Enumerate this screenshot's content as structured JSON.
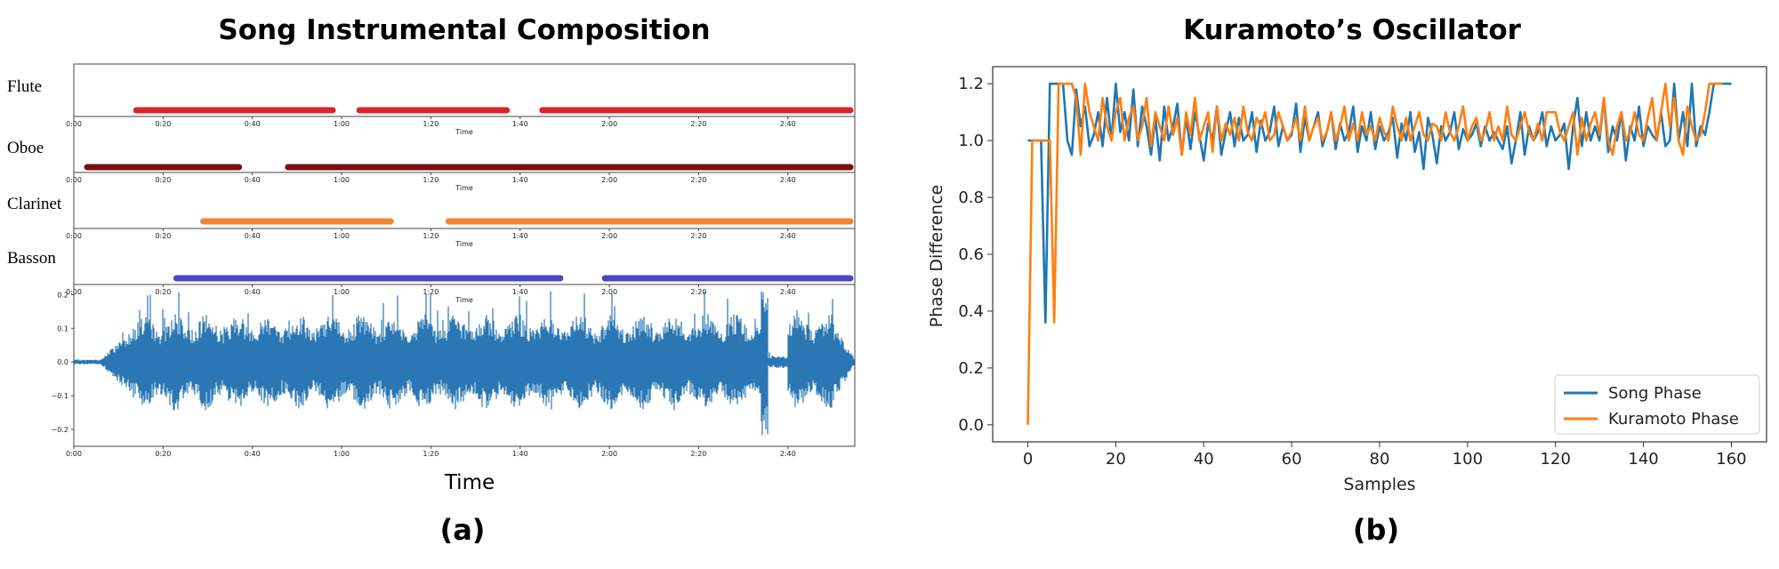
{
  "left_title": "Song Instrumental Composition",
  "right_title": "Kuramoto’s Oscillator",
  "label_a": "(a)",
  "label_b": "(b)",
  "chart_data": [
    {
      "type": "timeline",
      "title": "Song Instrumental Composition",
      "xlabel": "Time",
      "time_axis_label": "Time",
      "x_ticks": [
        "0:00",
        "0:20",
        "0:40",
        "1:00",
        "1:20",
        "1:40",
        "2:00",
        "2:20",
        "2:40"
      ],
      "tick_seconds": [
        0,
        20,
        40,
        60,
        80,
        100,
        120,
        140,
        160
      ],
      "xlim": [
        0,
        175
      ],
      "instruments": [
        {
          "name": "Flute",
          "color": "#d7262b",
          "segments": [
            [
              14,
              58
            ],
            [
              64,
              97
            ],
            [
              105,
              174
            ]
          ]
        },
        {
          "name": "Oboe",
          "color": "#7b0f12",
          "segments": [
            [
              3,
              37
            ],
            [
              48,
              174
            ]
          ]
        },
        {
          "name": "Clarinet",
          "color": "#f08535",
          "segments": [
            [
              29,
              71
            ],
            [
              84,
              174
            ]
          ]
        },
        {
          "name": "Basson",
          "color": "#4747bf",
          "segments": [
            [
              23,
              109
            ],
            [
              119,
              174
            ]
          ]
        }
      ],
      "waveform": {
        "color": "#2a77b3",
        "y_ticks": [
          "0.2",
          "0.1",
          "0.0",
          "−0.1",
          "−0.2"
        ],
        "y_values": [
          0.2,
          0.1,
          0.0,
          -0.1,
          -0.2
        ],
        "ylim": [
          -0.25,
          0.23
        ]
      }
    },
    {
      "type": "line",
      "title": "Kuramoto’s Oscillator",
      "xlabel": "Samples",
      "ylabel": "Phase Difference",
      "xlim": [
        -8,
        168
      ],
      "ylim": [
        -0.06,
        1.26
      ],
      "x_ticks": [
        0,
        20,
        40,
        60,
        80,
        100,
        120,
        140,
        160
      ],
      "y_ticks": [
        "0.0",
        "0.2",
        "0.4",
        "0.6",
        "0.8",
        "1.0",
        "1.2"
      ],
      "y_tick_values": [
        0.0,
        0.2,
        0.4,
        0.6,
        0.8,
        1.0,
        1.2
      ],
      "legend_position": "bottom-right",
      "series": [
        {
          "name": "Song Phase",
          "color": "#1f77b4",
          "values": [
            1.0,
            1.0,
            1.0,
            1.0,
            0.36,
            1.2,
            1.2,
            1.2,
            1.2,
            1.0,
            0.95,
            1.18,
            1.05,
            1.12,
            0.98,
            1.02,
            1.1,
            0.98,
            1.15,
            1.0,
            1.2,
            1.03,
            1.1,
            1.0,
            1.18,
            0.98,
            1.12,
            1.05,
            0.95,
            1.08,
            0.93,
            1.12,
            1.0,
            1.05,
            1.13,
            0.95,
            1.08,
            0.97,
            1.1,
            1.02,
            0.93,
            1.06,
            1.0,
            1.12,
            0.95,
            1.03,
            1.1,
            0.98,
            1.08,
            1.0,
            1.02,
            1.1,
            0.96,
            1.07,
            1.0,
            1.03,
            1.12,
            0.98,
            1.05,
            1.0,
            1.02,
            1.13,
            0.96,
            1.08,
            1.0,
            1.05,
            1.1,
            0.98,
            1.03,
            1.1,
            0.97,
            1.06,
            1.0,
            1.03,
            1.12,
            0.96,
            1.05,
            1.0,
            1.1,
            0.97,
            1.05,
            1.0,
            1.03,
            1.08,
            0.94,
            1.06,
            1.0,
            1.1,
            0.96,
            1.03,
            0.9,
            1.08,
            1.02,
            0.92,
            1.05,
            1.0,
            1.03,
            1.1,
            0.97,
            1.04,
            1.0,
            1.02,
            1.06,
            0.98,
            1.05,
            1.0,
            1.03,
            1.0,
            0.97,
            1.05,
            0.92,
            1.0,
            1.1,
            0.95,
            1.05,
            1.0,
            1.03,
            1.1,
            0.98,
            1.05,
            1.0,
            1.02,
            1.06,
            0.9,
            1.05,
            1.15,
            0.98,
            1.1,
            1.0,
            1.05,
            1.0,
            1.15,
            0.96,
            1.05,
            1.0,
            1.1,
            0.93,
            1.05,
            1.0,
            1.12,
            0.98,
            1.05,
            1.02,
            1.0,
            1.1,
            0.98,
            1.0,
            1.2,
            1.0,
            1.1,
            0.98,
            1.2,
            0.98,
            1.05,
            1.02,
            1.1,
            1.2,
            1.2,
            1.2,
            1.2,
            1.2
          ]
        },
        {
          "name": "Kuramoto Phase",
          "color": "#ff7f0e",
          "values": [
            0.0,
            1.0,
            1.0,
            1.0,
            1.0,
            1.0,
            0.36,
            1.2,
            1.2,
            1.2,
            1.2,
            1.15,
            0.95,
            1.2,
            1.1,
            1.05,
            1.0,
            1.15,
            1.05,
            1.0,
            1.1,
            1.15,
            1.0,
            1.08,
            1.12,
            1.0,
            1.05,
            1.15,
            0.98,
            1.1,
            1.05,
            1.0,
            1.12,
            1.02,
            1.08,
            0.95,
            1.1,
            1.02,
            1.15,
            1.0,
            1.05,
            1.1,
            0.96,
            1.12,
            1.0,
            1.06,
            1.02,
            1.08,
            1.0,
            1.12,
            1.03,
            1.0,
            1.08,
            1.05,
            1.1,
            1.0,
            1.02,
            1.1,
            1.05,
            1.0,
            1.03,
            1.08,
            1.0,
            1.12,
            1.0,
            1.05,
            1.08,
            1.0,
            1.03,
            1.1,
            1.0,
            1.05,
            1.12,
            1.0,
            1.06,
            1.0,
            1.1,
            1.02,
            1.05,
            1.0,
            1.08,
            1.03,
            1.0,
            1.12,
            1.05,
            1.0,
            1.08,
            1.0,
            1.05,
            1.1,
            1.02,
            1.0,
            1.06,
            1.05,
            1.0,
            1.1,
            1.03,
            1.0,
            1.05,
            1.12,
            1.0,
            1.05,
            1.08,
            1.0,
            1.03,
            1.1,
            1.0,
            1.05,
            1.0,
            1.12,
            1.02,
            1.0,
            1.05,
            1.1,
            1.03,
            1.0,
            1.06,
            1.0,
            1.1,
            1.1,
            1.1,
            1.03,
            1.0,
            1.05,
            1.1,
            0.95,
            1.08,
            1.0,
            1.06,
            1.1,
            1.02,
            1.15,
            1.0,
            0.95,
            1.05,
            1.1,
            1.0,
            1.03,
            1.1,
            1.02,
            1.0,
            1.08,
            1.15,
            1.0,
            1.1,
            1.2,
            1.05,
            1.15,
            1.0,
            0.95,
            1.12,
            1.05,
            1.0,
            1.02,
            1.1,
            1.2,
            1.2,
            1.2,
            1.2
          ]
        }
      ]
    }
  ]
}
